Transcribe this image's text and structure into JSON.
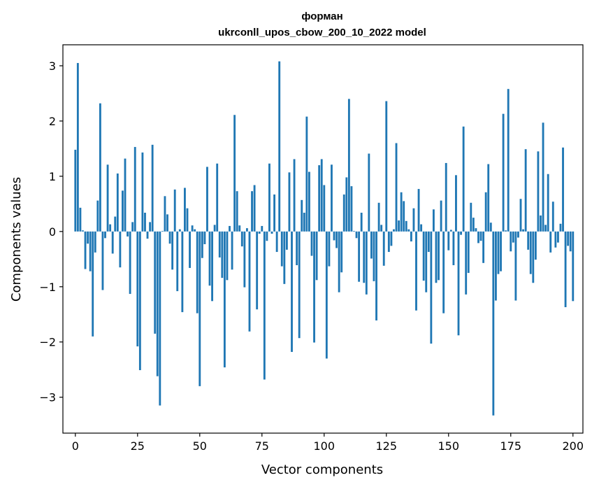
{
  "chart_data": {
    "type": "bar",
    "title": "форман",
    "subtitle": "ukrconll_upos_cbow_200_10_2022 model",
    "xlabel": "Vector components",
    "ylabel": "Components values",
    "xlim": [
      -5,
      204
    ],
    "ylim": [
      -3.65,
      3.38
    ],
    "xticks": [
      0,
      25,
      50,
      75,
      100,
      125,
      150,
      175,
      200
    ],
    "yticks": [
      -3,
      -2,
      -1,
      0,
      1,
      2,
      3
    ],
    "grid": false,
    "bar_color": "#1f77b4",
    "values": [
      1.48,
      3.05,
      0.43,
      0.02,
      -0.68,
      -0.22,
      -0.72,
      -1.9,
      -0.38,
      0.56,
      2.32,
      -1.06,
      -0.12,
      1.21,
      0.13,
      -0.4,
      0.27,
      1.05,
      -0.65,
      0.74,
      1.32,
      -0.09,
      -1.13,
      0.17,
      1.53,
      -2.08,
      -2.51,
      1.43,
      0.34,
      -0.13,
      0.17,
      1.57,
      -1.85,
      -2.62,
      -3.15,
      0.01,
      0.64,
      0.31,
      -0.22,
      -0.69,
      0.76,
      -1.08,
      0.04,
      -1.46,
      0.79,
      0.42,
      -0.66,
      0.11,
      0.04,
      -1.48,
      -2.8,
      -0.48,
      -0.23,
      1.17,
      -0.98,
      -1.26,
      0.12,
      1.23,
      -0.47,
      -0.84,
      -2.46,
      -0.88,
      0.1,
      -0.69,
      2.11,
      0.73,
      0.11,
      -0.27,
      -1.01,
      0.06,
      -1.81,
      0.73,
      0.84,
      -1.41,
      -0.04,
      0.1,
      -2.68,
      -0.17,
      1.23,
      -0.04,
      0.67,
      -0.37,
      3.08,
      -0.63,
      -0.95,
      -0.33,
      1.07,
      -2.18,
      1.31,
      -0.61,
      -1.93,
      0.57,
      0.34,
      2.08,
      1.08,
      -0.44,
      -2.01,
      -0.88,
      1.2,
      1.31,
      0.84,
      -2.3,
      -0.63,
      1.21,
      -0.16,
      -0.3,
      -1.1,
      -0.74,
      0.67,
      0.98,
      2.4,
      0.82,
      0.01,
      -0.12,
      -0.91,
      0.34,
      -0.93,
      -1.14,
      1.41,
      -0.49,
      -0.9,
      -1.61,
      0.52,
      0.12,
      -0.62,
      2.36,
      -0.37,
      -0.26,
      0.04,
      1.6,
      0.2,
      0.71,
      0.55,
      0.19,
      0.04,
      -0.18,
      0.42,
      -1.43,
      0.77,
      0.13,
      -0.89,
      -1.1,
      -0.37,
      -2.03,
      0.4,
      -0.93,
      -0.88,
      0.56,
      -1.48,
      1.24,
      -0.34,
      0.03,
      -0.61,
      1.02,
      -1.88,
      -0.06,
      1.9,
      -1.14,
      -0.75,
      0.52,
      0.25,
      0.06,
      -0.21,
      -0.17,
      -0.57,
      0.71,
      1.22,
      0.16,
      -3.33,
      -1.25,
      -0.77,
      -0.72,
      2.13,
      0.02,
      2.58,
      -0.36,
      -0.2,
      -1.25,
      -0.11,
      0.59,
      0.04,
      1.49,
      -0.33,
      -0.77,
      -0.93,
      -0.51,
      1.45,
      0.29,
      1.97,
      0.12,
      1.04,
      -0.38,
      0.54,
      -0.29,
      -0.2,
      0.14,
      1.52,
      -1.37,
      -0.26,
      -0.36,
      -1.26
    ]
  }
}
